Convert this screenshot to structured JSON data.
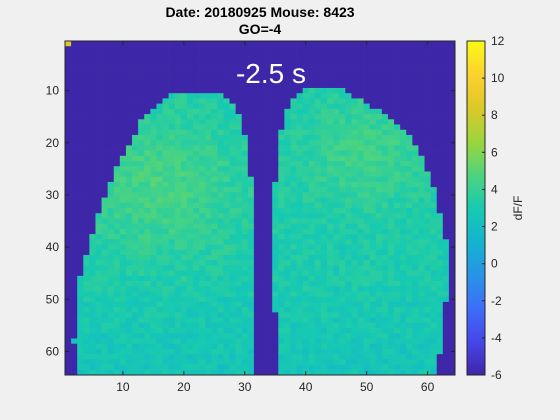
{
  "figure": {
    "title_line1": "Date: 20180925 Mouse: 8423",
    "title_line2": "GO=-4",
    "time_label": "-2.5 s",
    "colorbar_label": "dF/F"
  },
  "chart_data": {
    "type": "heatmap",
    "title": "Date: 20180925 Mouse: 8423 GO=-4",
    "annotation": "-2.5 s",
    "xlim": [
      0.5,
      64.5
    ],
    "ylim": [
      0.5,
      64.5
    ],
    "x_ticks": [
      10,
      20,
      30,
      40,
      50,
      60
    ],
    "y_ticks": [
      10,
      20,
      30,
      40,
      50,
      60
    ],
    "y_reversed": true,
    "grid_size": [
      64,
      64
    ],
    "clim": [
      -6,
      12
    ],
    "colorbar_ticks": [
      -6,
      -4,
      -2,
      0,
      2,
      4,
      6,
      8,
      10,
      12
    ],
    "colorbar_label": "dF/F",
    "colormap": "parula",
    "background_value": -6,
    "typical_value_range": [
      2.5,
      6
    ],
    "colors": {
      "background": "#f0f0f0",
      "masked": "#3e26a8",
      "axis": "#262626"
    }
  }
}
